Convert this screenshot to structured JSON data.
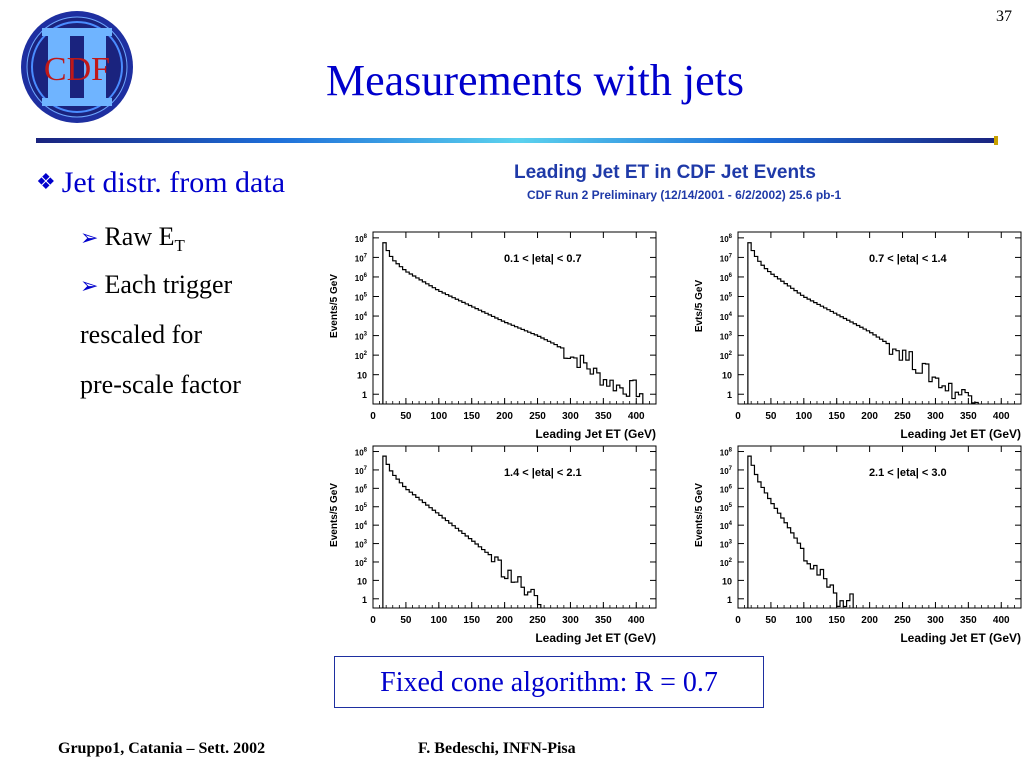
{
  "slide": {
    "page_number": "37",
    "title": "Measurements with jets",
    "logo_text": "CDF",
    "colors": {
      "title": "#0000cc",
      "chart_title": "#1f3aa8",
      "logo_ring": "#1e2fa0",
      "logo_letters": "#c01818"
    }
  },
  "bullets": {
    "main": "Jet distr. from data",
    "sub1_base": "Raw E",
    "sub1_subscript": "T",
    "sub2_line1": "Each trigger",
    "sub2_line2": "rescaled for",
    "sub2_line3": "pre-scale factor"
  },
  "chart_header": {
    "title": "Leading Jet ET in CDF Jet Events",
    "subtitle": "CDF Run 2 Preliminary (12/14/2001 - 6/2/2002) 25.6 pb-1"
  },
  "note": "Fixed cone algorithm: R = 0.7",
  "footer": {
    "left": "Gruppo1, Catania – Sett. 2002",
    "right": "F. Bedeschi, INFN-Pisa"
  },
  "chart_data": [
    {
      "type": "histogram",
      "label": "0.1 < |eta| < 0.7",
      "xlabel": "Leading Jet ET (GeV)",
      "ylabel": "Events/5 GeV",
      "xlim": [
        0,
        430
      ],
      "ylim_log10": [
        -0.5,
        8.3
      ],
      "log_y": true,
      "x_ticks": [
        "0",
        "50",
        "100",
        "150",
        "200",
        "250",
        "300",
        "350",
        "400"
      ],
      "y_ticks": [
        "1",
        "10",
        "10^2",
        "10^3",
        "10^4",
        "10^5",
        "10^6",
        "10^7",
        "10^8"
      ],
      "bin_width_gev": 5,
      "points_log10": [
        [
          15,
          8.0
        ],
        [
          20,
          7.5
        ],
        [
          25,
          7.2
        ],
        [
          30,
          6.9
        ],
        [
          40,
          6.6
        ],
        [
          50,
          6.3
        ],
        [
          75,
          5.8
        ],
        [
          100,
          5.3
        ],
        [
          150,
          4.5
        ],
        [
          200,
          3.7
        ],
        [
          250,
          3.0
        ],
        [
          280,
          2.5
        ],
        [
          300,
          2.0
        ],
        [
          320,
          1.6
        ],
        [
          340,
          1.0
        ],
        [
          360,
          0.6
        ],
        [
          380,
          0.3
        ],
        [
          400,
          0.3
        ],
        [
          410,
          0.0
        ]
      ]
    },
    {
      "type": "histogram",
      "label": "0.7 < |eta| < 1.4",
      "xlabel": "Leading Jet ET (GeV)",
      "ylabel": "Evts/5 GeV",
      "xlim": [
        0,
        430
      ],
      "ylim_log10": [
        -0.5,
        8.3
      ],
      "log_y": true,
      "x_ticks": [
        "0",
        "50",
        "100",
        "150",
        "200",
        "250",
        "300",
        "350",
        "400"
      ],
      "y_ticks": [
        "1",
        "10",
        "10^2",
        "10^3",
        "10^4",
        "10^5",
        "10^6",
        "10^7",
        "10^8"
      ],
      "bin_width_gev": 5,
      "points_log10": [
        [
          15,
          8.0
        ],
        [
          20,
          7.5
        ],
        [
          25,
          7.2
        ],
        [
          30,
          6.9
        ],
        [
          40,
          6.5
        ],
        [
          50,
          6.2
        ],
        [
          75,
          5.6
        ],
        [
          100,
          5.0
        ],
        [
          150,
          4.1
        ],
        [
          200,
          3.2
        ],
        [
          250,
          2.1
        ],
        [
          280,
          1.3
        ],
        [
          300,
          0.8
        ],
        [
          320,
          0.3
        ],
        [
          340,
          0.0
        ],
        [
          365,
          0.0
        ]
      ]
    },
    {
      "type": "histogram",
      "label": "1.4 < |eta| < 2.1",
      "xlabel": "Leading Jet ET (GeV)",
      "ylabel": "Events/5 GeV",
      "xlim": [
        0,
        430
      ],
      "ylim_log10": [
        -0.5,
        8.3
      ],
      "log_y": true,
      "x_ticks": [
        "0",
        "50",
        "100",
        "150",
        "200",
        "250",
        "300",
        "350",
        "400"
      ],
      "y_ticks": [
        "1",
        "10",
        "10^2",
        "10^3",
        "10^4",
        "10^5",
        "10^6",
        "10^7",
        "10^8"
      ],
      "bin_width_gev": 5,
      "points_log10": [
        [
          15,
          8.0
        ],
        [
          20,
          7.5
        ],
        [
          25,
          7.1
        ],
        [
          30,
          6.8
        ],
        [
          40,
          6.4
        ],
        [
          50,
          6.0
        ],
        [
          75,
          5.3
        ],
        [
          100,
          4.6
        ],
        [
          150,
          3.2
        ],
        [
          180,
          2.3
        ],
        [
          200,
          1.5
        ],
        [
          215,
          1.0
        ],
        [
          230,
          0.6
        ],
        [
          245,
          0.0
        ],
        [
          255,
          0.0
        ]
      ]
    },
    {
      "type": "histogram",
      "label": "2.1 < |eta| < 3.0",
      "xlabel": "Leading Jet ET (GeV)",
      "ylabel": "Events/5 GeV",
      "xlim": [
        0,
        430
      ],
      "ylim_log10": [
        -0.5,
        8.3
      ],
      "log_y": true,
      "x_ticks": [
        "0",
        "50",
        "100",
        "150",
        "200",
        "250",
        "300",
        "350",
        "400"
      ],
      "y_ticks": [
        "1",
        "10",
        "10^2",
        "10^3",
        "10^4",
        "10^5",
        "10^6",
        "10^7",
        "10^8"
      ],
      "bin_width_gev": 5,
      "points_log10": [
        [
          15,
          8.0
        ],
        [
          20,
          7.5
        ],
        [
          25,
          7.0
        ],
        [
          30,
          6.5
        ],
        [
          40,
          5.9
        ],
        [
          50,
          5.3
        ],
        [
          75,
          4.0
        ],
        [
          100,
          2.6
        ],
        [
          125,
          1.3
        ],
        [
          140,
          0.5
        ],
        [
          150,
          0.0
        ],
        [
          175,
          0.0
        ]
      ]
    }
  ]
}
